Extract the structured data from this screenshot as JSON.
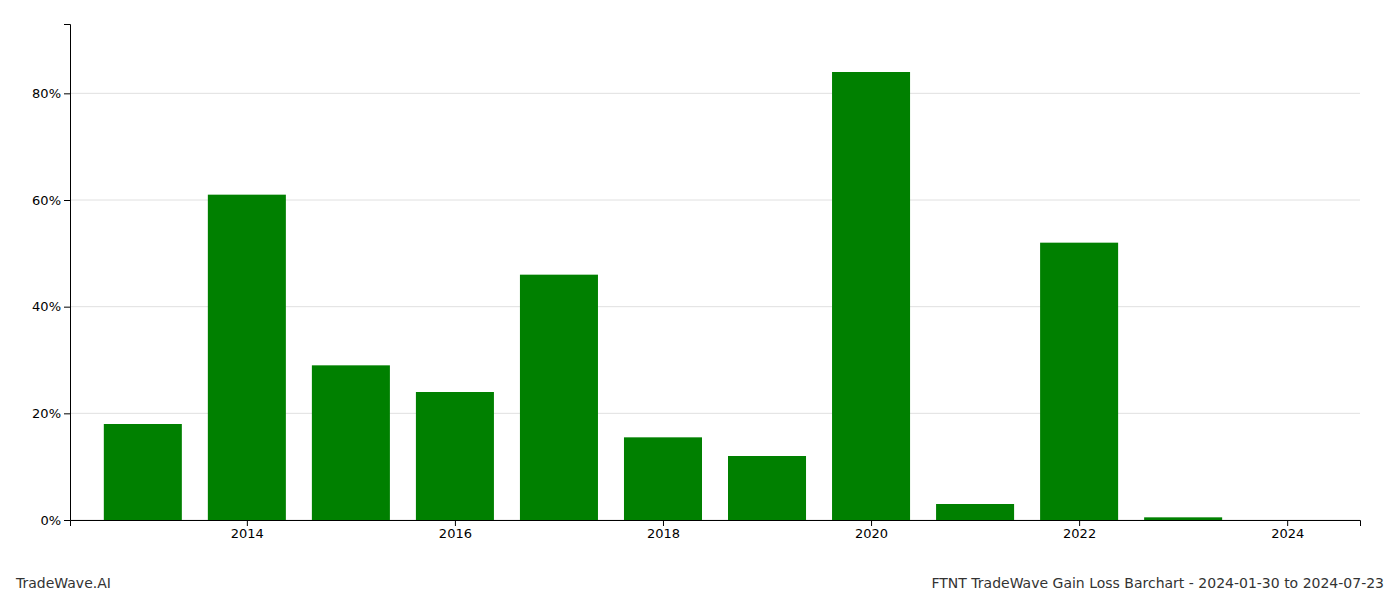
{
  "chart_data": {
    "type": "bar",
    "title": "FTNT TradeWave Gain Loss Barchart - 2024-01-30 to 2024-07-23",
    "annotations": [
      "TradeWave.AI"
    ],
    "x": [
      2013,
      2014,
      2015,
      2016,
      2017,
      2018,
      2019,
      2020,
      2021,
      2022,
      2023
    ],
    "values": [
      0.18,
      0.61,
      0.29,
      0.24,
      0.46,
      0.155,
      0.12,
      0.84,
      0.03,
      0.52,
      0.005
    ],
    "color": "#008000",
    "xlim": [
      2012.3,
      2024.7
    ],
    "xticks": [
      2014,
      2016,
      2018,
      2020,
      2022,
      2024
    ],
    "ylim": [
      0,
      0.93
    ],
    "yticks": [
      {
        "value": 0.0,
        "label": "0%"
      },
      {
        "value": 0.2,
        "label": "20%"
      },
      {
        "value": 0.4,
        "label": "40%"
      },
      {
        "value": 0.6,
        "label": "60%"
      },
      {
        "value": 0.8,
        "label": "80%"
      }
    ],
    "grid": true
  }
}
